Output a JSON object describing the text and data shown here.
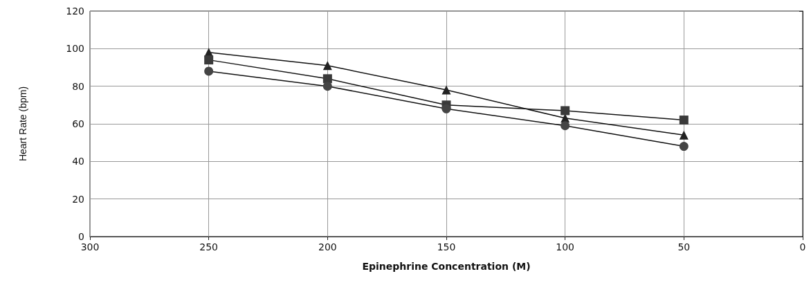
{
  "chart_data": {
    "type": "line",
    "xlabel": "Epinephrine Concentration (M)",
    "ylabel": "Heart Rate (bpm)",
    "x": [
      250,
      200,
      150,
      100,
      50
    ],
    "series": [
      {
        "color": "#222222",
        "marker": "triangle",
        "values": [
          98,
          91,
          78,
          63,
          54
        ]
      },
      {
        "color": "#3a3a3a",
        "marker": "square",
        "values": [
          94,
          84,
          70,
          67,
          62
        ]
      },
      {
        "color": "#444444",
        "marker": "circle",
        "values": [
          88,
          80,
          68,
          59,
          48
        ]
      }
    ],
    "xlim": [
      300,
      0
    ],
    "xticks": [
      300,
      250,
      200,
      150,
      100,
      50,
      0
    ],
    "ylim": [
      0,
      120
    ],
    "yticks": [
      0,
      20,
      40,
      60,
      80,
      100,
      120
    ],
    "grid": true
  }
}
